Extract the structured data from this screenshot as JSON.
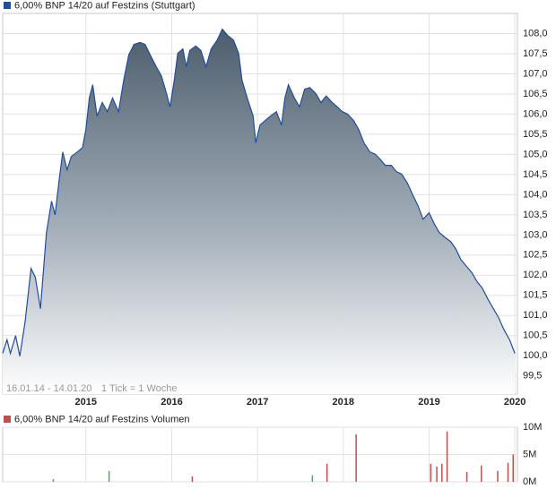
{
  "chart_data": [
    {
      "type": "area",
      "annotations": [
        "16.01.14 - 14.01.20",
        "1 Tick = 1 Woche"
      ],
      "xlim": [
        2014.03,
        2020.03
      ],
      "xticks": [
        2015,
        2016,
        2017,
        2018,
        2019,
        2020
      ],
      "ylim": [
        99.05,
        108.5
      ],
      "yticks": [
        {
          "value": 99.5,
          "label": "99,5"
        },
        {
          "value": 100,
          "label": "100,0"
        },
        {
          "value": 100.5,
          "label": "100,5"
        },
        {
          "value": 101,
          "label": "101,0"
        },
        {
          "value": 101.5,
          "label": "101,5"
        },
        {
          "value": 102,
          "label": "102,0"
        },
        {
          "value": 102.5,
          "label": "102,5"
        },
        {
          "value": 103,
          "label": "103,0"
        },
        {
          "value": 103.5,
          "label": "103,5"
        },
        {
          "value": 104,
          "label": "104,0"
        },
        {
          "value": 104.5,
          "label": "104,5"
        },
        {
          "value": 105,
          "label": "105,0"
        },
        {
          "value": 105.5,
          "label": "105,5"
        },
        {
          "value": 106,
          "label": "106,0"
        },
        {
          "value": 106.5,
          "label": "106,5"
        },
        {
          "value": 107,
          "label": "107,0"
        },
        {
          "value": 107.5,
          "label": "107,5"
        },
        {
          "value": 108,
          "label": "108,0"
        }
      ],
      "grid": true,
      "series": [
        {
          "name": "6,00% BNP 14/20 auf Festzins (Stuttgart)",
          "color": "#1f4e9c",
          "x": [
            2014.03,
            2014.08,
            2014.12,
            2014.18,
            2014.23,
            2014.29,
            2014.36,
            2014.41,
            2014.47,
            2014.54,
            2014.6,
            2014.64,
            2014.69,
            2014.73,
            2014.78,
            2014.83,
            2014.9,
            2014.96,
            2015.0,
            2015.04,
            2015.08,
            2015.13,
            2015.19,
            2015.25,
            2015.31,
            2015.38,
            2015.44,
            2015.5,
            2015.56,
            2015.63,
            2015.69,
            2015.75,
            2015.82,
            2015.88,
            2015.94,
            2015.98,
            2016.03,
            2016.07,
            2016.13,
            2016.17,
            2016.21,
            2016.28,
            2016.34,
            2016.4,
            2016.46,
            2016.53,
            2016.59,
            2016.65,
            2016.72,
            2016.78,
            2016.82,
            2016.88,
            2016.95,
            2016.98,
            2017.03,
            2017.09,
            2017.15,
            2017.22,
            2017.28,
            2017.32,
            2017.36,
            2017.43,
            2017.49,
            2017.55,
            2017.61,
            2017.68,
            2017.74,
            2017.8,
            2017.87,
            2017.93,
            2017.99,
            2018.05,
            2018.12,
            2018.18,
            2018.24,
            2018.31,
            2018.37,
            2018.43,
            2018.49,
            2018.56,
            2018.62,
            2018.68,
            2018.75,
            2018.81,
            2018.87,
            2018.93,
            2019.0,
            2019.06,
            2019.12,
            2019.18,
            2019.25,
            2019.31,
            2019.37,
            2019.44,
            2019.5,
            2019.56,
            2019.62,
            2019.69,
            2019.75,
            2019.81,
            2019.87,
            2019.94,
            2020.0
          ],
          "values": [
            100.06,
            100.4,
            100.06,
            100.5,
            99.99,
            100.83,
            102.17,
            101.95,
            101.17,
            103.06,
            103.84,
            103.5,
            104.39,
            105.06,
            104.62,
            104.95,
            105.06,
            105.17,
            105.62,
            106.4,
            106.73,
            105.95,
            106.29,
            106.06,
            106.4,
            106.06,
            106.84,
            107.47,
            107.73,
            107.78,
            107.73,
            107.47,
            107.18,
            106.95,
            106.51,
            106.18,
            106.84,
            107.51,
            107.62,
            107.18,
            107.58,
            107.69,
            107.58,
            107.18,
            107.62,
            107.84,
            108.11,
            107.96,
            107.84,
            107.51,
            106.84,
            106.4,
            105.95,
            105.29,
            105.73,
            105.84,
            105.95,
            106.06,
            105.73,
            106.4,
            106.73,
            106.4,
            106.18,
            106.62,
            106.66,
            106.51,
            106.29,
            106.45,
            106.29,
            106.18,
            106.06,
            106.0,
            105.84,
            105.62,
            105.29,
            105.06,
            105.01,
            104.88,
            104.73,
            104.73,
            104.57,
            104.51,
            104.28,
            103.99,
            103.73,
            103.39,
            103.55,
            103.28,
            103.06,
            102.95,
            102.84,
            102.66,
            102.39,
            102.21,
            102.06,
            101.84,
            101.68,
            101.39,
            101.17,
            100.95,
            100.66,
            100.39,
            100.06
          ]
        }
      ]
    },
    {
      "type": "bar",
      "title": "6,00% BNP 14/20 auf Festzins Volumen",
      "color": "#c0504d",
      "xlim": [
        2014.03,
        2020.03
      ],
      "xticks": [
        2015,
        2016,
        2017,
        2018,
        2019,
        2020
      ],
      "ylim": [
        0,
        10000000
      ],
      "yticks": [
        {
          "value": 0,
          "label": "0M"
        },
        {
          "value": 5000000,
          "label": "5M"
        },
        {
          "value": 10000000,
          "label": "10M"
        }
      ],
      "grid": true,
      "series": [
        {
          "color": "#c0504d",
          "x": [
            2016.24,
            2017.81,
            2018.15,
            2019.02,
            2019.09,
            2019.15,
            2019.21,
            2019.44,
            2019.61,
            2019.8,
            2019.92,
            2019.98
          ],
          "values": [
            1000000,
            3300000,
            8700000,
            3300000,
            2800000,
            3300000,
            9200000,
            1800000,
            3000000,
            2000000,
            3500000,
            5000000
          ]
        },
        {
          "color": "#4caf50",
          "x": [
            2014.62,
            2015.27,
            2017.64
          ],
          "values": [
            500000,
            2000000,
            1200000
          ]
        }
      ]
    }
  ]
}
